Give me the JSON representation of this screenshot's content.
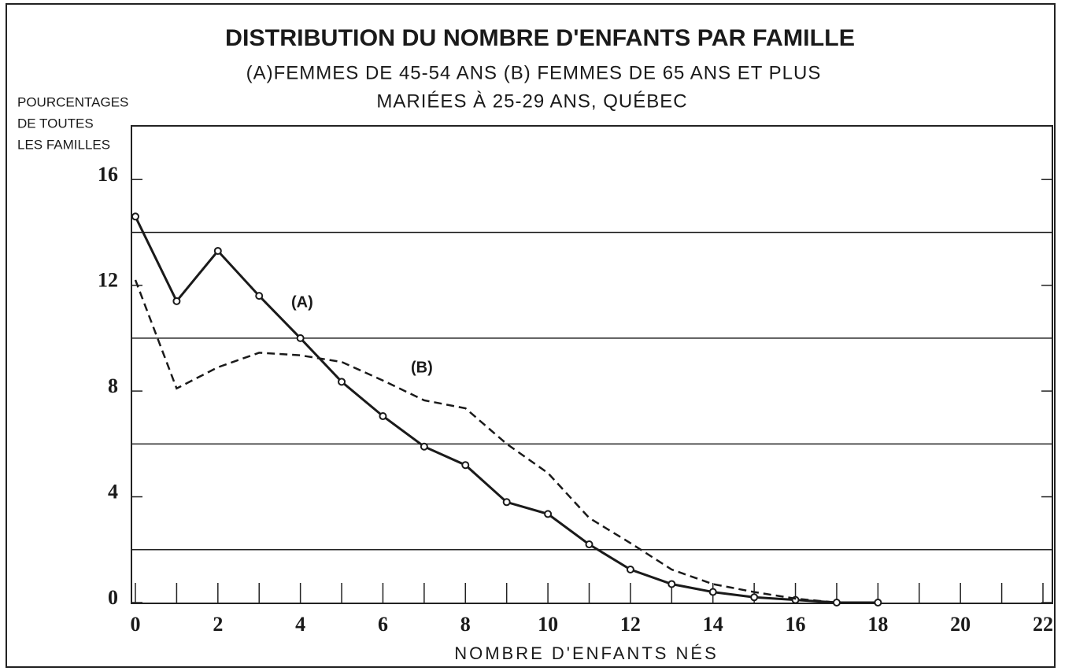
{
  "chart_data": {
    "type": "line",
    "title": "DISTRIBUTION DU NOMBRE D'ENFANTS PAR FAMILLE",
    "subtitle": [
      "(A)FEMMES DE 45-54 ANS (B) FEMMES DE 65 ANS ET PLUS",
      "MARIÉES À 25-29 ANS, QUÉBEC"
    ],
    "ylabel": [
      "POURCENTAGES",
      "DE TOUTES",
      "LES FAMILLES"
    ],
    "xlabel": "NOMBRE D'ENFANTS NÉS",
    "x": [
      0,
      1,
      2,
      3,
      4,
      5,
      6,
      7,
      8,
      9,
      10,
      11,
      12,
      13,
      14,
      15,
      16,
      17,
      18
    ],
    "series": [
      {
        "name": "(A)",
        "color": "#1a1a1a",
        "dashed": false,
        "markers": true,
        "values": [
          14.6,
          11.4,
          13.3,
          11.6,
          10.0,
          8.35,
          7.05,
          5.9,
          5.2,
          3.8,
          3.35,
          2.2,
          1.25,
          0.7,
          0.4,
          0.2,
          0.1,
          0,
          0
        ]
      },
      {
        "name": "(B)",
        "color": "#1a1a1a",
        "dashed": true,
        "markers": false,
        "values": [
          12.2,
          8.1,
          8.9,
          9.45,
          9.35,
          9.1,
          8.4,
          7.65,
          7.35,
          6.0,
          4.9,
          3.2,
          2.25,
          1.25,
          0.7,
          0.4,
          0.15,
          0,
          null
        ]
      }
    ],
    "xlim": [
      0,
      22
    ],
    "ylim": [
      0,
      18
    ],
    "xticks": [
      0,
      2,
      4,
      6,
      8,
      10,
      12,
      14,
      16,
      18,
      20,
      22
    ],
    "xminor_ticks": [
      1,
      3,
      5,
      7,
      9,
      11,
      13,
      15,
      17,
      19,
      21
    ],
    "yticks": [
      0,
      4,
      8,
      12,
      16
    ],
    "ygrid": [
      2,
      6,
      10,
      14
    ]
  }
}
